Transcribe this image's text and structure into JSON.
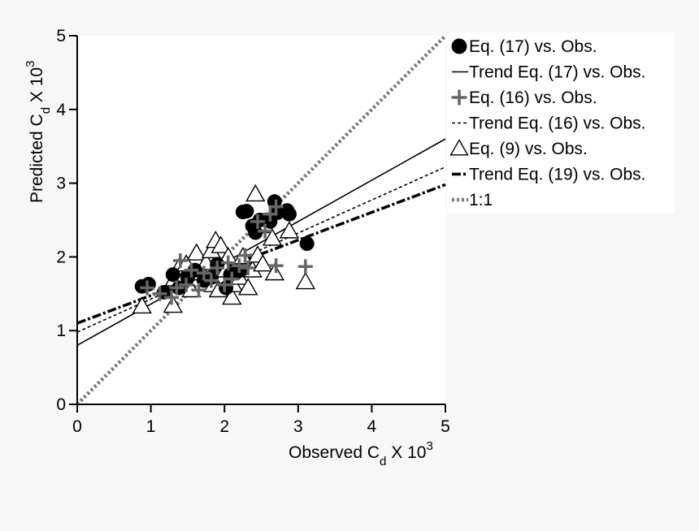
{
  "chart_data": {
    "type": "scatter",
    "xlabel": {
      "main": "Observed C",
      "sub": "d",
      "mid": " X 10",
      "sup": "3"
    },
    "ylabel": {
      "main": "Predicted C",
      "sub": "d",
      "mid": " X 10",
      "sup": "3"
    },
    "xlim": [
      0,
      5
    ],
    "ylim": [
      0,
      5
    ],
    "x_ticks": [
      "0",
      "1",
      "2",
      "3",
      "4",
      "5"
    ],
    "y_ticks": [
      "0",
      "1",
      "2",
      "3",
      "4",
      "5"
    ],
    "grid": false,
    "legend_position": "right",
    "colors": {
      "eq17": "#000000",
      "eq16": "#666666",
      "eq9": "#000000",
      "one_to_one": "#7a7a7a",
      "background": "#f7f7f7",
      "plot_bg": "#ffffff"
    },
    "series": [
      {
        "name": "Eq. (17) vs. Obs.",
        "marker": "circle",
        "points": [
          [
            0.88,
            1.6
          ],
          [
            0.97,
            1.63
          ],
          [
            1.18,
            1.52
          ],
          [
            1.3,
            1.76
          ],
          [
            1.38,
            1.58
          ],
          [
            1.5,
            1.72
          ],
          [
            1.6,
            1.82
          ],
          [
            1.72,
            1.68
          ],
          [
            1.82,
            1.72
          ],
          [
            1.9,
            1.9
          ],
          [
            2.02,
            1.58
          ],
          [
            2.08,
            1.76
          ],
          [
            2.15,
            1.78
          ],
          [
            2.22,
            1.82
          ],
          [
            2.25,
            2.61
          ],
          [
            2.3,
            2.62
          ],
          [
            2.38,
            2.42
          ],
          [
            2.42,
            2.33
          ],
          [
            2.48,
            2.5
          ],
          [
            2.62,
            2.48
          ],
          [
            2.68,
            2.75
          ],
          [
            2.72,
            2.6
          ],
          [
            2.85,
            2.63
          ],
          [
            2.88,
            2.58
          ],
          [
            3.12,
            2.18
          ]
        ]
      },
      {
        "name": "Trend Eq. (17) vs. Obs.",
        "line": "solid",
        "endpoints": [
          [
            0,
            0.8
          ],
          [
            5,
            3.6
          ]
        ]
      },
      {
        "name": "Eq. (16) vs. Obs.",
        "marker": "plus",
        "points": [
          [
            0.95,
            1.58
          ],
          [
            1.12,
            1.5
          ],
          [
            1.28,
            1.45
          ],
          [
            1.35,
            1.58
          ],
          [
            1.4,
            1.95
          ],
          [
            1.48,
            1.62
          ],
          [
            1.55,
            1.82
          ],
          [
            1.65,
            1.55
          ],
          [
            1.72,
            1.78
          ],
          [
            1.82,
            1.68
          ],
          [
            1.9,
            1.85
          ],
          [
            2.0,
            1.62
          ],
          [
            2.05,
            1.92
          ],
          [
            2.1,
            1.7
          ],
          [
            2.2,
            1.88
          ],
          [
            2.28,
            2.02
          ],
          [
            2.32,
            1.85
          ],
          [
            2.45,
            2.48
          ],
          [
            2.55,
            2.35
          ],
          [
            2.62,
            2.58
          ],
          [
            2.7,
            2.68
          ],
          [
            2.7,
            1.88
          ],
          [
            3.1,
            1.87
          ]
        ]
      },
      {
        "name": "Trend Eq. (16) vs. Obs.",
        "line": "dashed",
        "endpoints": [
          [
            0,
            0.98
          ],
          [
            5,
            3.22
          ]
        ]
      },
      {
        "name": "Eq. (9) vs. Obs.",
        "marker": "triangle",
        "points": [
          [
            0.88,
            1.33
          ],
          [
            1.3,
            1.34
          ],
          [
            1.32,
            1.7
          ],
          [
            1.38,
            1.85
          ],
          [
            1.45,
            1.72
          ],
          [
            1.48,
            1.9
          ],
          [
            1.55,
            1.55
          ],
          [
            1.62,
            2.05
          ],
          [
            1.7,
            1.78
          ],
          [
            1.75,
            1.92
          ],
          [
            1.82,
            2.08
          ],
          [
            1.85,
            1.62
          ],
          [
            1.88,
            2.22
          ],
          [
            1.92,
            1.55
          ],
          [
            1.95,
            2.15
          ],
          [
            2.02,
            1.82
          ],
          [
            2.05,
            2.0
          ],
          [
            2.1,
            1.45
          ],
          [
            2.12,
            1.62
          ],
          [
            2.2,
            1.72
          ],
          [
            2.25,
            2.0
          ],
          [
            2.32,
            1.58
          ],
          [
            2.38,
            1.82
          ],
          [
            2.42,
            2.85
          ],
          [
            2.45,
            2.02
          ],
          [
            2.52,
            1.9
          ],
          [
            2.55,
            2.42
          ],
          [
            2.65,
            2.25
          ],
          [
            2.68,
            1.78
          ],
          [
            2.88,
            2.35
          ],
          [
            3.1,
            1.66
          ]
        ]
      },
      {
        "name": "Trend Eq. (19) vs. Obs.",
        "line": "dashdot",
        "endpoints": [
          [
            0,
            1.1
          ],
          [
            5,
            2.98
          ]
        ]
      },
      {
        "name": "1:1",
        "line": "dotted",
        "endpoints": [
          [
            0,
            0
          ],
          [
            5,
            5
          ]
        ]
      }
    ]
  }
}
